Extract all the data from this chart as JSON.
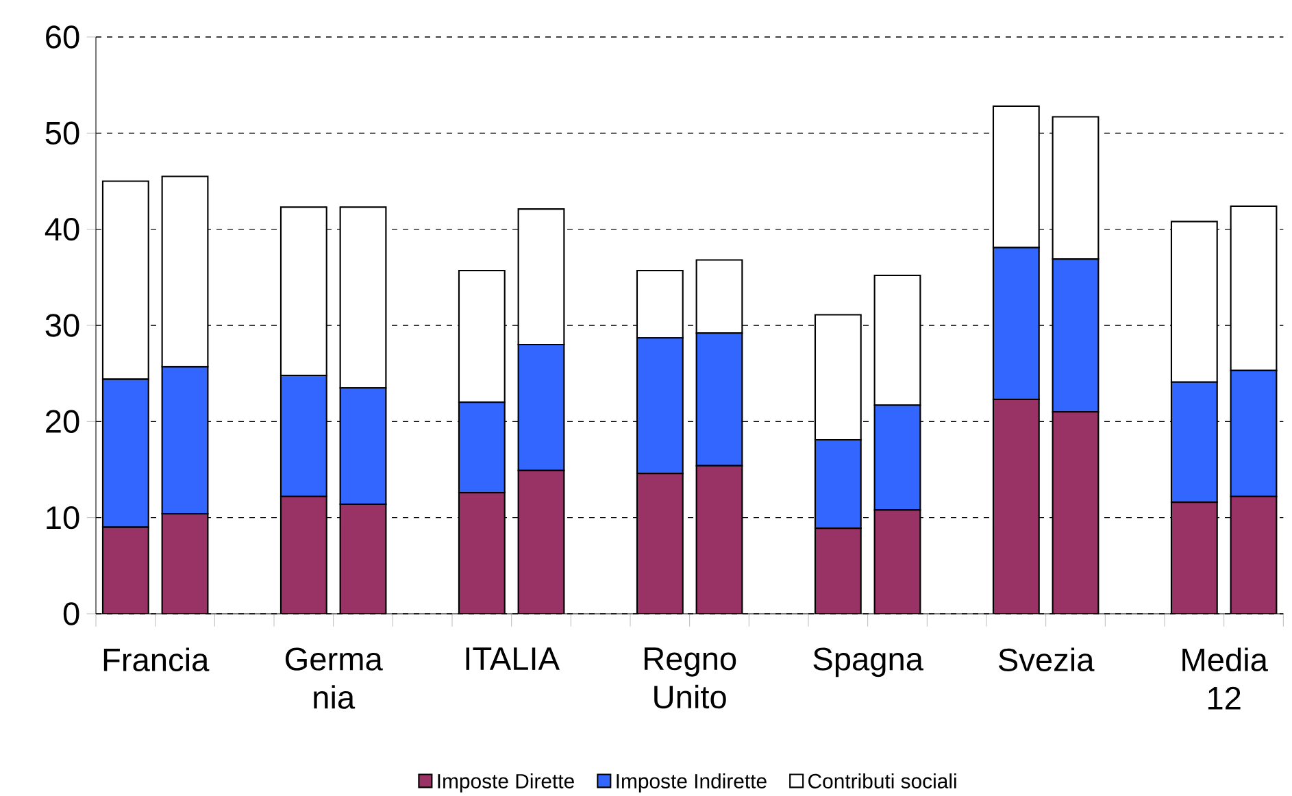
{
  "chart_data": {
    "type": "bar",
    "stacked": true,
    "categories": [
      "Francia",
      null,
      null,
      "Germa nia",
      null,
      null,
      "ITALIA",
      null,
      null,
      "Regno Unito",
      null,
      null,
      "Spagna",
      null,
      null,
      "Svezia",
      null,
      null,
      "Media 12",
      null
    ],
    "series": [
      {
        "name": "Imposte Dirette",
        "color": "#993366",
        "values": [
          9.0,
          10.4,
          null,
          12.2,
          11.4,
          null,
          12.6,
          14.9,
          null,
          14.6,
          15.4,
          null,
          8.9,
          10.8,
          null,
          22.3,
          21.0,
          null,
          11.6,
          12.2
        ]
      },
      {
        "name": "Imposte Indirette",
        "color": "#3366ff",
        "values": [
          15.4,
          15.3,
          null,
          12.6,
          12.1,
          null,
          9.4,
          13.1,
          null,
          14.1,
          13.8,
          null,
          9.2,
          10.9,
          null,
          15.8,
          15.9,
          null,
          12.5,
          13.1
        ]
      },
      {
        "name": "Contributi sociali",
        "color": "#ffffff",
        "values": [
          20.6,
          19.8,
          null,
          17.5,
          18.8,
          null,
          13.7,
          14.1,
          null,
          7.0,
          7.6,
          null,
          13.0,
          13.5,
          null,
          14.7,
          14.8,
          null,
          16.7,
          17.1
        ]
      }
    ],
    "ylim": [
      0,
      60
    ],
    "yticks": [
      0,
      10,
      20,
      30,
      40,
      50,
      60
    ],
    "grid": "y",
    "legend": "bottom"
  }
}
